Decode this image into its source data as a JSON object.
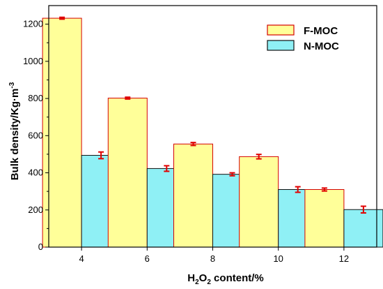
{
  "chart_data": {
    "type": "bar",
    "categories": [
      "4",
      "6",
      "8",
      "10",
      "12"
    ],
    "series": [
      {
        "name": "F-MOC",
        "values": [
          1232,
          802,
          555,
          487,
          310
        ],
        "errors": [
          5,
          5,
          8,
          12,
          8
        ],
        "fill": "#ffff99",
        "stroke": "#d40000"
      },
      {
        "name": "N-MOC",
        "values": [
          494,
          423,
          392,
          310,
          202
        ],
        "errors": [
          18,
          15,
          8,
          15,
          18
        ],
        "fill": "#8ff0f5",
        "stroke": "#111111"
      }
    ],
    "xlabel": {
      "main": "H",
      "sub1": "2",
      "mid": "O",
      "sub2": "2",
      "rest": " content/%"
    },
    "ylabel": {
      "main": "Bulk density/Kg·m",
      "sup": "-3"
    },
    "ylim": [
      0,
      1300
    ],
    "yticks": [
      0,
      200,
      400,
      600,
      800,
      1000,
      1200
    ],
    "grid": false,
    "legend_position": "top-right",
    "error_bar_color": "#e00000"
  }
}
